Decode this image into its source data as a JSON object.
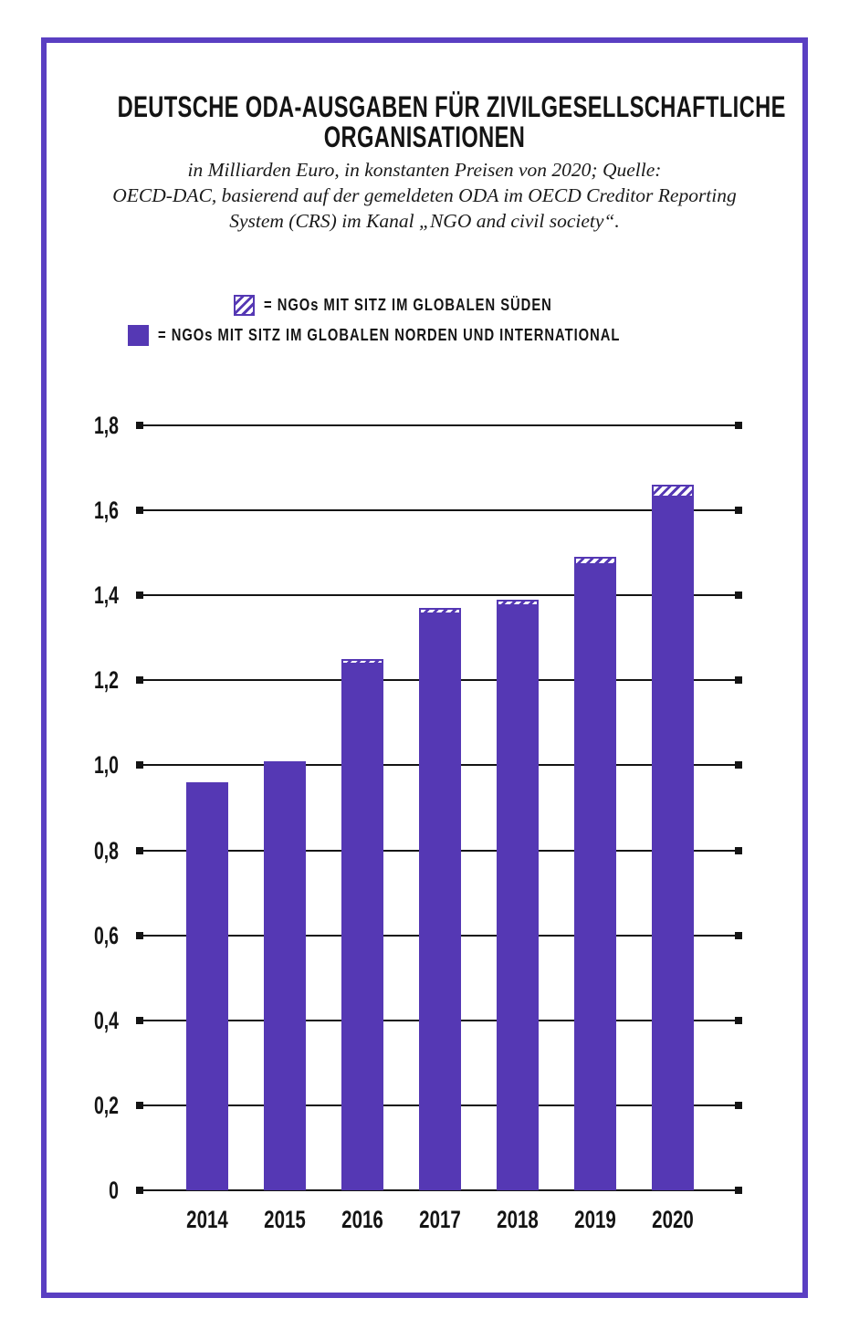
{
  "header": {
    "title_line1": "DEUTSCHE ODA-AUSGABEN FÜR ZIVILGESELLSCHAFTLICHE",
    "title_line2": "ORGANISATIONEN",
    "subtitle_line1": "in Milliarden Euro, in konstanten Preisen von 2020; Quelle:",
    "subtitle_line2": "OECD-DAC, basierend auf der gemeldeten ODA im OECD Creditor Reporting",
    "subtitle_line3": "System (CRS) im Kanal „NGO and civil society“."
  },
  "legend": {
    "south_label": "= NGOs MIT SITZ IM GLOBALEN SÜDEN",
    "north_label": "= NGOs MIT SITZ IM GLOBALEN NORDEN UND INTERNATIONAL"
  },
  "colors": {
    "bar_purple": "#5538b4",
    "frame_purple": "#5a3fc2",
    "grid_black": "#141414"
  },
  "chart_data": {
    "type": "bar",
    "stacked": true,
    "title": "Deutsche ODA-Ausgaben für zivilgesellschaftliche Organisationen",
    "ylabel": "Milliarden Euro, in konstanten Preisen von 2020",
    "categories": [
      "2014",
      "2015",
      "2016",
      "2017",
      "2018",
      "2019",
      "2020"
    ],
    "series": [
      {
        "name": "NGOs mit Sitz im Globalen Norden und international",
        "style": "solid",
        "values": [
          0.96,
          1.01,
          1.24,
          1.355,
          1.375,
          1.47,
          1.63
        ]
      },
      {
        "name": "NGOs mit Sitz im Globalen Süden",
        "style": "hatched",
        "values": [
          0,
          0,
          0.01,
          0.015,
          0.015,
          0.02,
          0.03
        ]
      }
    ],
    "totals": [
      0.96,
      1.01,
      1.25,
      1.37,
      1.39,
      1.49,
      1.66
    ],
    "ylim": [
      0,
      1.8
    ],
    "ytick_step": 0.2,
    "yticklabels": [
      "1,8",
      "1,6",
      "1,4",
      "1,2",
      "1,0",
      "0,8",
      "0,6",
      "0,4",
      "0,2",
      "0"
    ],
    "grid": true,
    "legend_position": "top"
  }
}
